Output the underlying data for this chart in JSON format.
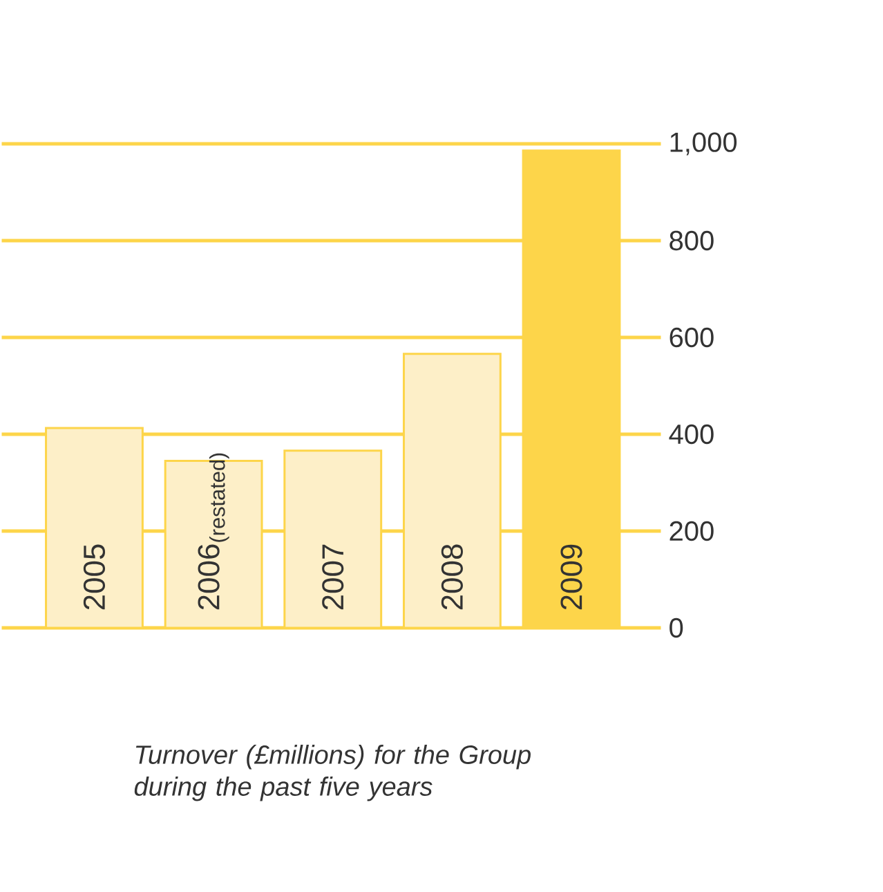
{
  "chart_data": {
    "type": "bar",
    "title": "*Turnover (£millions) for the Group during the past five years*",
    "categories": [
      "2005",
      "2006$_{(restated)}$",
      "2007",
      "2008",
      "2009"
    ],
    "values": [
      413,
      345,
      366,
      566,
      986
    ],
    "colors": [
      "#fdefc8",
      "#fdefc8",
      "#fdefc8",
      "#fdefc8",
      "#fdd54a"
    ],
    "ylim": [
      0,
      1000
    ],
    "yticks": [
      0,
      200,
      400,
      600,
      800,
      {
        "value": 1000,
        "label": "1,000"
      }
    ],
    "grid": "y"
  }
}
